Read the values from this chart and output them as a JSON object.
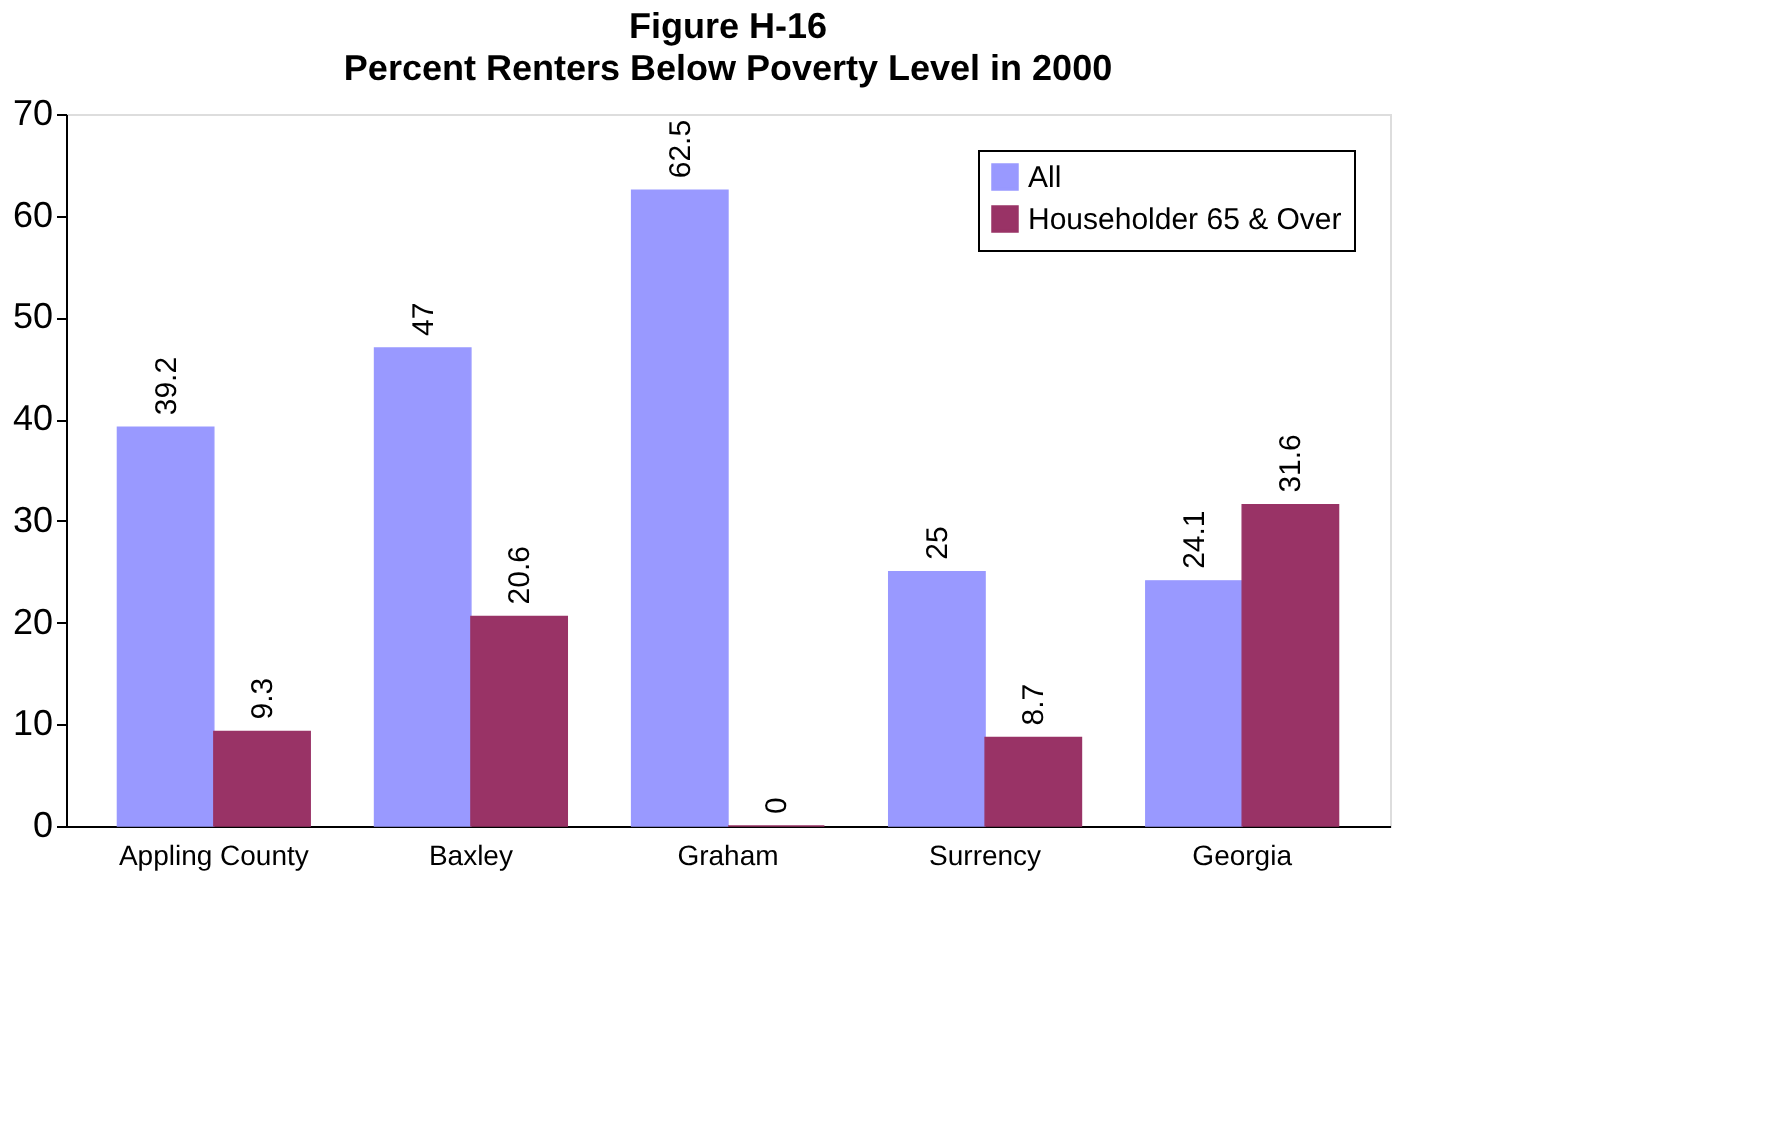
{
  "chart_data": {
    "type": "bar",
    "title": "Figure H-16",
    "subtitle": "Percent Renters Below Poverty Level in 2000",
    "categories": [
      "Appling County",
      "Baxley",
      "Graham",
      "Surrency",
      "Georgia"
    ],
    "series": [
      {
        "name": "All",
        "color": "#9999ff",
        "values": [
          39.2,
          47,
          62.5,
          25,
          24.1
        ]
      },
      {
        "name": "Householder 65 & Over",
        "color": "#993366",
        "values": [
          9.3,
          20.6,
          0,
          8.7,
          31.6
        ]
      }
    ],
    "ylim": [
      0,
      70
    ],
    "yticks": [
      0,
      10,
      20,
      30,
      40,
      50,
      60,
      70
    ],
    "grid": false,
    "legend": "top right",
    "data_labels": true
  }
}
